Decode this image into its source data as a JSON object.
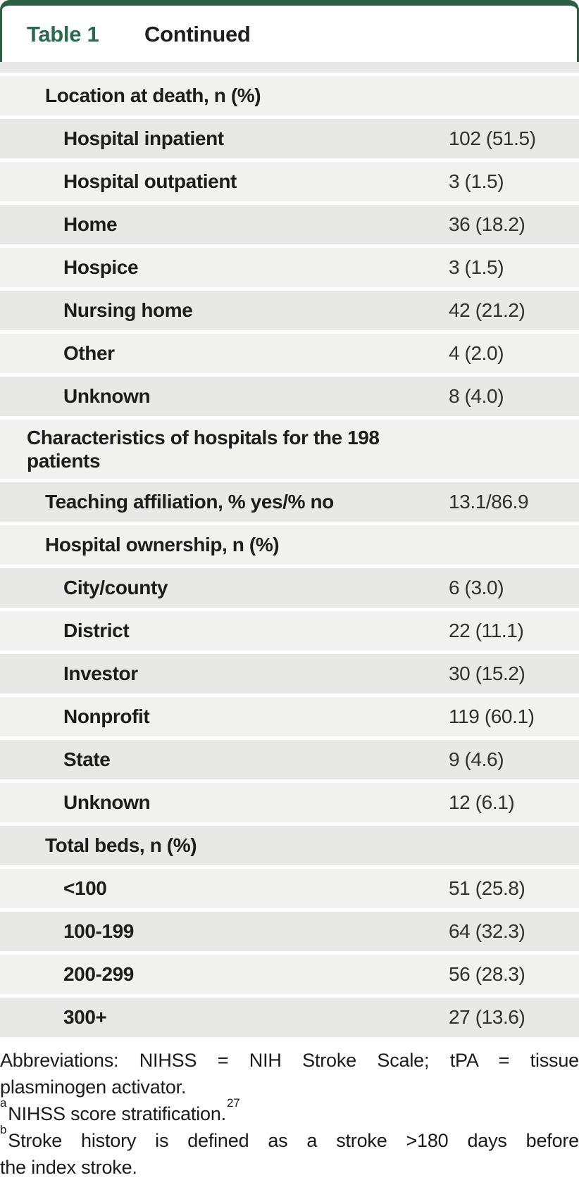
{
  "header": {
    "table_label": "Table 1",
    "title": "Continued"
  },
  "table": {
    "rows": [
      {
        "label": "Location at death, n (%)",
        "value": "",
        "indent": 2
      },
      {
        "label": "Hospital inpatient",
        "value": "102 (51.5)",
        "indent": 3
      },
      {
        "label": "Hospital outpatient",
        "value": "3 (1.5)",
        "indent": 3
      },
      {
        "label": "Home",
        "value": "36 (18.2)",
        "indent": 3
      },
      {
        "label": "Hospice",
        "value": "3 (1.5)",
        "indent": 3
      },
      {
        "label": "Nursing home",
        "value": "42 (21.2)",
        "indent": 3
      },
      {
        "label": "Other",
        "value": "4 (2.0)",
        "indent": 3
      },
      {
        "label": "Unknown",
        "value": "8 (4.0)",
        "indent": 3
      },
      {
        "label": "Characteristics of hospitals for the 198\npatients",
        "value": "",
        "indent": 1,
        "tall": true
      },
      {
        "label": "Teaching affiliation, % yes/% no",
        "value": "13.1/86.9",
        "indent": 2
      },
      {
        "label": "Hospital ownership, n (%)",
        "value": "",
        "indent": 2
      },
      {
        "label": "City/county",
        "value": "6 (3.0)",
        "indent": 3
      },
      {
        "label": "District",
        "value": "22 (11.1)",
        "indent": 3
      },
      {
        "label": "Investor",
        "value": "30 (15.2)",
        "indent": 3
      },
      {
        "label": "Nonprofit",
        "value": "119 (60.1)",
        "indent": 3
      },
      {
        "label": "State",
        "value": "9 (4.6)",
        "indent": 3
      },
      {
        "label": "Unknown",
        "value": "12 (6.1)",
        "indent": 3
      },
      {
        "label": "Total beds, n (%)",
        "value": "",
        "indent": 2
      },
      {
        "label": "<100",
        "value": "51 (25.8)",
        "indent": 3
      },
      {
        "label": "100-199",
        "value": "64 (32.3)",
        "indent": 3
      },
      {
        "label": "200-299",
        "value": "56 (28.3)",
        "indent": 3
      },
      {
        "label": "300+",
        "value": "27 (13.6)",
        "indent": 3
      }
    ]
  },
  "footnotes": {
    "lines": [
      {
        "text": "Abbreviations: NIHSS = NIH Stroke Scale; tPA = tissue",
        "justify": true
      },
      {
        "text": "plasminogen activator."
      },
      {
        "sup_before": "a",
        "text": "NIHSS score stratification.",
        "sup_after": "27"
      },
      {
        "sup_before": "b",
        "text": "Stroke history is defined as a stroke >180 days before",
        "justify": true
      },
      {
        "text": "the index stroke."
      }
    ]
  },
  "colors": {
    "accent_green_border": "#2a5f44",
    "accent_green_text": "#2a6a4c",
    "row_light": "#f1f1f0",
    "row_dark": "#e8e8e6",
    "label_text": "#1d1d1b",
    "value_text": "#31312f"
  }
}
